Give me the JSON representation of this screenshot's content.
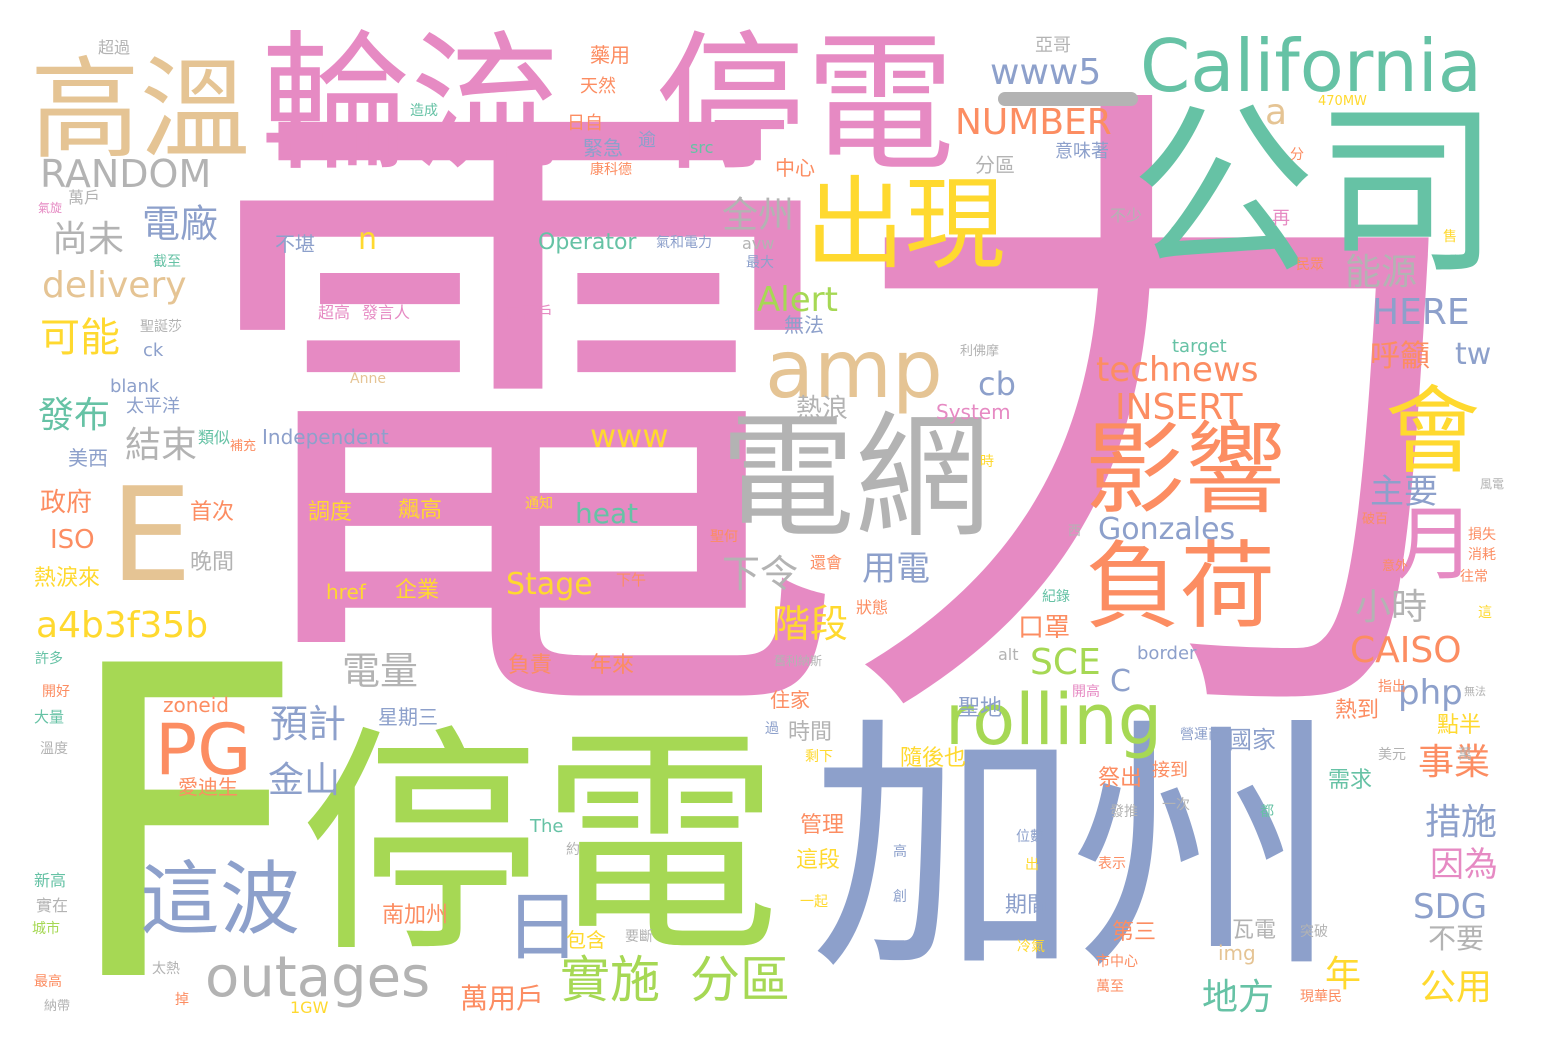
{
  "palette": {
    "pink": "#e68ac3",
    "green": "#a6d854",
    "blue": "#8da0cb",
    "teal": "#66c2a5",
    "orange": "#fc8d62",
    "yellow": "#ffd92f",
    "tan": "#e5c494",
    "gray": "#b3b3b3"
  },
  "words": [
    {
      "text": "電力",
      "color": "pink"
    },
    {
      "text": "F",
      "color": "green"
    },
    {
      "text": "停電",
      "color": "green"
    },
    {
      "text": "加州",
      "color": "blue"
    },
    {
      "text": "公司",
      "color": "teal"
    },
    {
      "text": "停電",
      "color": "pink"
    },
    {
      "text": "輪流",
      "color": "pink"
    },
    {
      "text": "California",
      "color": "teal"
    },
    {
      "text": "高溫",
      "color": "tan"
    },
    {
      "text": "電網",
      "color": "gray"
    },
    {
      "text": "E",
      "color": "tan"
    },
    {
      "text": "出現",
      "color": "yellow"
    },
    {
      "text": "影響",
      "color": "orange"
    },
    {
      "text": "負荷",
      "color": "orange"
    },
    {
      "text": "會",
      "color": "yellow"
    },
    {
      "text": "amp",
      "color": "tan"
    },
    {
      "text": "rolling",
      "color": "green"
    },
    {
      "text": "這波",
      "color": "blue"
    },
    {
      "text": "outages",
      "color": "gray"
    },
    {
      "text": "PG",
      "color": "orange"
    },
    {
      "text": "日",
      "color": "blue"
    },
    {
      "text": "月",
      "color": "pink"
    },
    {
      "text": "實施",
      "color": "green"
    },
    {
      "text": "分區",
      "color": "green"
    },
    {
      "text": "www5",
      "color": "blue"
    },
    {
      "text": "NUMBER",
      "color": "orange"
    },
    {
      "text": "RANDOM",
      "color": "gray"
    },
    {
      "text": "a",
      "color": "tan"
    },
    {
      "text": "delivery",
      "color": "tan"
    },
    {
      "text": "電廠",
      "color": "blue"
    },
    {
      "text": "尚未",
      "color": "gray"
    },
    {
      "text": "n",
      "color": "yellow"
    },
    {
      "text": "全州",
      "color": "gray"
    },
    {
      "text": "能源",
      "color": "gray"
    },
    {
      "text": "HERE",
      "color": "blue"
    },
    {
      "text": "可能",
      "color": "yellow"
    },
    {
      "text": "Alert",
      "color": "green"
    },
    {
      "text": "cb",
      "color": "blue"
    },
    {
      "text": "technews",
      "color": "orange"
    },
    {
      "text": "INSERT",
      "color": "orange"
    },
    {
      "text": "呼籲",
      "color": "orange"
    },
    {
      "text": "tw",
      "color": "blue"
    },
    {
      "text": "發布",
      "color": "teal"
    },
    {
      "text": "結束",
      "color": "gray"
    },
    {
      "text": "www",
      "color": "yellow"
    },
    {
      "text": "熱浪",
      "color": "gray"
    },
    {
      "text": "主要",
      "color": "blue"
    },
    {
      "text": "政府",
      "color": "orange"
    },
    {
      "text": "ISO",
      "color": "orange"
    },
    {
      "text": "heat",
      "color": "teal"
    },
    {
      "text": "Gonzales",
      "color": "blue"
    },
    {
      "text": "用電",
      "color": "blue"
    },
    {
      "text": "下令",
      "color": "gray"
    },
    {
      "text": "小時",
      "color": "gray"
    },
    {
      "text": "Stage",
      "color": "yellow"
    },
    {
      "text": "a4b3f35b",
      "color": "yellow"
    },
    {
      "text": "階段",
      "color": "yellow"
    },
    {
      "text": "CAISO",
      "color": "orange"
    },
    {
      "text": "SCE",
      "color": "green"
    },
    {
      "text": "電量",
      "color": "gray"
    },
    {
      "text": "php",
      "color": "blue"
    },
    {
      "text": "預計",
      "color": "blue"
    },
    {
      "text": "事業",
      "color": "orange"
    },
    {
      "text": "金山",
      "color": "blue"
    },
    {
      "text": "措施",
      "color": "blue"
    },
    {
      "text": "因為",
      "color": "pink"
    },
    {
      "text": "SDG",
      "color": "blue"
    },
    {
      "text": "不要",
      "color": "gray"
    },
    {
      "text": "年",
      "color": "yellow"
    },
    {
      "text": "地方",
      "color": "teal"
    },
    {
      "text": "公用",
      "color": "yellow"
    },
    {
      "text": "萬用戶",
      "color": "orange"
    },
    {
      "text": "口罩",
      "color": "orange"
    },
    {
      "text": "C",
      "color": "blue"
    },
    {
      "text": "國家",
      "color": "blue"
    },
    {
      "text": "熱淚來",
      "color": "yellow"
    },
    {
      "text": "晚間",
      "color": "gray"
    },
    {
      "text": "首次",
      "color": "orange"
    },
    {
      "text": "調度",
      "color": "yellow"
    },
    {
      "text": "飆高",
      "color": "yellow"
    },
    {
      "text": "href",
      "color": "yellow"
    },
    {
      "text": "企業",
      "color": "yellow"
    },
    {
      "text": "負責",
      "color": "orange"
    },
    {
      "text": "年來",
      "color": "orange"
    },
    {
      "text": "住家",
      "color": "orange"
    },
    {
      "text": "聖地",
      "color": "blue"
    },
    {
      "text": "時間",
      "color": "gray"
    },
    {
      "text": "隨後也",
      "color": "yellow"
    },
    {
      "text": "祭出",
      "color": "orange"
    },
    {
      "text": "接到",
      "color": "orange"
    },
    {
      "text": "需求",
      "color": "teal"
    },
    {
      "text": "熱到",
      "color": "orange"
    },
    {
      "text": "點半",
      "color": "yellow"
    },
    {
      "text": "管理",
      "color": "orange"
    },
    {
      "text": "這段",
      "color": "yellow"
    },
    {
      "text": "期間",
      "color": "blue"
    },
    {
      "text": "第三",
      "color": "orange"
    },
    {
      "text": "瓦電",
      "color": "gray"
    },
    {
      "text": "南加州",
      "color": "orange"
    },
    {
      "text": "包含",
      "color": "yellow"
    },
    {
      "text": "愛迪生",
      "color": "orange"
    },
    {
      "text": "星期三",
      "color": "blue"
    },
    {
      "text": "zoneid",
      "color": "orange"
    },
    {
      "text": "The",
      "color": "teal"
    },
    {
      "text": "img",
      "color": "tan"
    },
    {
      "text": "1GW",
      "color": "yellow"
    },
    {
      "text": "Operator",
      "color": "teal"
    },
    {
      "text": "Independent",
      "color": "blue"
    },
    {
      "text": "System",
      "color": "pink"
    },
    {
      "text": "target",
      "color": "teal"
    },
    {
      "text": "blank",
      "color": "blue"
    },
    {
      "text": "ck",
      "color": "blue"
    },
    {
      "text": "Anne",
      "color": "tan"
    },
    {
      "text": "border",
      "color": "blue"
    },
    {
      "text": "alt",
      "color": "gray"
    },
    {
      "text": "src",
      "color": "teal"
    },
    {
      "text": "avw",
      "color": "gray"
    },
    {
      "text": "470MW",
      "color": "yellow"
    },
    {
      "text": "美西",
      "color": "blue"
    },
    {
      "text": "太平洋",
      "color": "blue"
    },
    {
      "text": "類似",
      "color": "teal"
    },
    {
      "text": "無法",
      "color": "blue"
    },
    {
      "text": "不堪",
      "color": "blue"
    },
    {
      "text": "緊急",
      "color": "blue"
    },
    {
      "text": "日自",
      "color": "orange"
    },
    {
      "text": "天然",
      "color": "orange"
    },
    {
      "text": "藥用",
      "color": "orange"
    },
    {
      "text": "中心",
      "color": "orange"
    },
    {
      "text": "分區",
      "color": "gray"
    },
    {
      "text": "意味著",
      "color": "blue"
    },
    {
      "text": "亞哥",
      "color": "gray"
    },
    {
      "text": "超過",
      "color": "gray"
    },
    {
      "text": "萬戶",
      "color": "gray"
    },
    {
      "text": "截至",
      "color": "teal"
    },
    {
      "text": "氣旋",
      "color": "pink"
    },
    {
      "text": "聖誕莎",
      "color": "gray"
    },
    {
      "text": "超高",
      "color": "pink"
    },
    {
      "text": "發言人",
      "color": "pink"
    },
    {
      "text": "高客戶",
      "color": "pink"
    },
    {
      "text": "康科德",
      "color": "orange"
    },
    {
      "text": "造成",
      "color": "teal"
    },
    {
      "text": "逾",
      "color": "blue"
    },
    {
      "text": "氣和電力",
      "color": "blue"
    },
    {
      "text": "最大",
      "color": "blue"
    },
    {
      "text": "不少",
      "color": "gray"
    },
    {
      "text": "再",
      "color": "pink"
    },
    {
      "text": "分",
      "color": "orange"
    },
    {
      "text": "民眾",
      "color": "orange"
    },
    {
      "text": "售",
      "color": "yellow"
    },
    {
      "text": "利佛摩",
      "color": "gray"
    },
    {
      "text": "補充",
      "color": "orange"
    },
    {
      "text": "通知",
      "color": "yellow"
    },
    {
      "text": "聖何",
      "color": "orange"
    },
    {
      "text": "下午",
      "color": "orange"
    },
    {
      "text": "還會",
      "color": "orange"
    },
    {
      "text": "狀態",
      "color": "orange"
    },
    {
      "text": "時",
      "color": "yellow"
    },
    {
      "text": "西",
      "color": "gray"
    },
    {
      "text": "紀錄",
      "color": "teal"
    },
    {
      "text": "破百",
      "color": "orange"
    },
    {
      "text": "風電",
      "color": "gray"
    },
    {
      "text": "損失",
      "color": "orange"
    },
    {
      "text": "消耗",
      "color": "orange"
    },
    {
      "text": "往常",
      "color": "orange"
    },
    {
      "text": "意外",
      "color": "orange"
    },
    {
      "text": "這",
      "color": "yellow"
    },
    {
      "text": "舊利納斯",
      "color": "gray"
    },
    {
      "text": "開高",
      "color": "pink"
    },
    {
      "text": "指出",
      "color": "orange"
    },
    {
      "text": "營運商",
      "color": "blue"
    },
    {
      "text": "美元",
      "color": "gray"
    },
    {
      "text": "萬",
      "color": "gray"
    },
    {
      "text": "無法",
      "color": "gray"
    },
    {
      "text": "過",
      "color": "blue"
    },
    {
      "text": "剩下",
      "color": "yellow"
    },
    {
      "text": "一次",
      "color": "gray"
    },
    {
      "text": "都",
      "color": "teal"
    },
    {
      "text": "發推",
      "color": "gray"
    },
    {
      "text": "位數",
      "color": "blue"
    },
    {
      "text": "高",
      "color": "blue"
    },
    {
      "text": "出",
      "color": "yellow"
    },
    {
      "text": "表示",
      "color": "orange"
    },
    {
      "text": "約",
      "color": "gray"
    },
    {
      "text": "創",
      "color": "blue"
    },
    {
      "text": "一起",
      "color": "yellow"
    },
    {
      "text": "冷氣",
      "color": "yellow"
    },
    {
      "text": "市中心",
      "color": "orange"
    },
    {
      "text": "萬至",
      "color": "orange"
    },
    {
      "text": "突破",
      "color": "gray"
    },
    {
      "text": "現華民",
      "color": "orange"
    },
    {
      "text": "要斷",
      "color": "gray"
    },
    {
      "text": "太熱",
      "color": "gray"
    },
    {
      "text": "掉",
      "color": "orange"
    },
    {
      "text": "許多",
      "color": "teal"
    },
    {
      "text": "開好",
      "color": "orange"
    },
    {
      "text": "大量",
      "color": "teal"
    },
    {
      "text": "溫度",
      "color": "gray"
    },
    {
      "text": "新高",
      "color": "teal"
    },
    {
      "text": "實在",
      "color": "gray"
    },
    {
      "text": "城市",
      "color": "green"
    },
    {
      "text": "最高",
      "color": "orange"
    },
    {
      "text": "納帶",
      "color": "gray"
    },
    {
      "text": "",
      "color": "gray"
    }
  ]
}
